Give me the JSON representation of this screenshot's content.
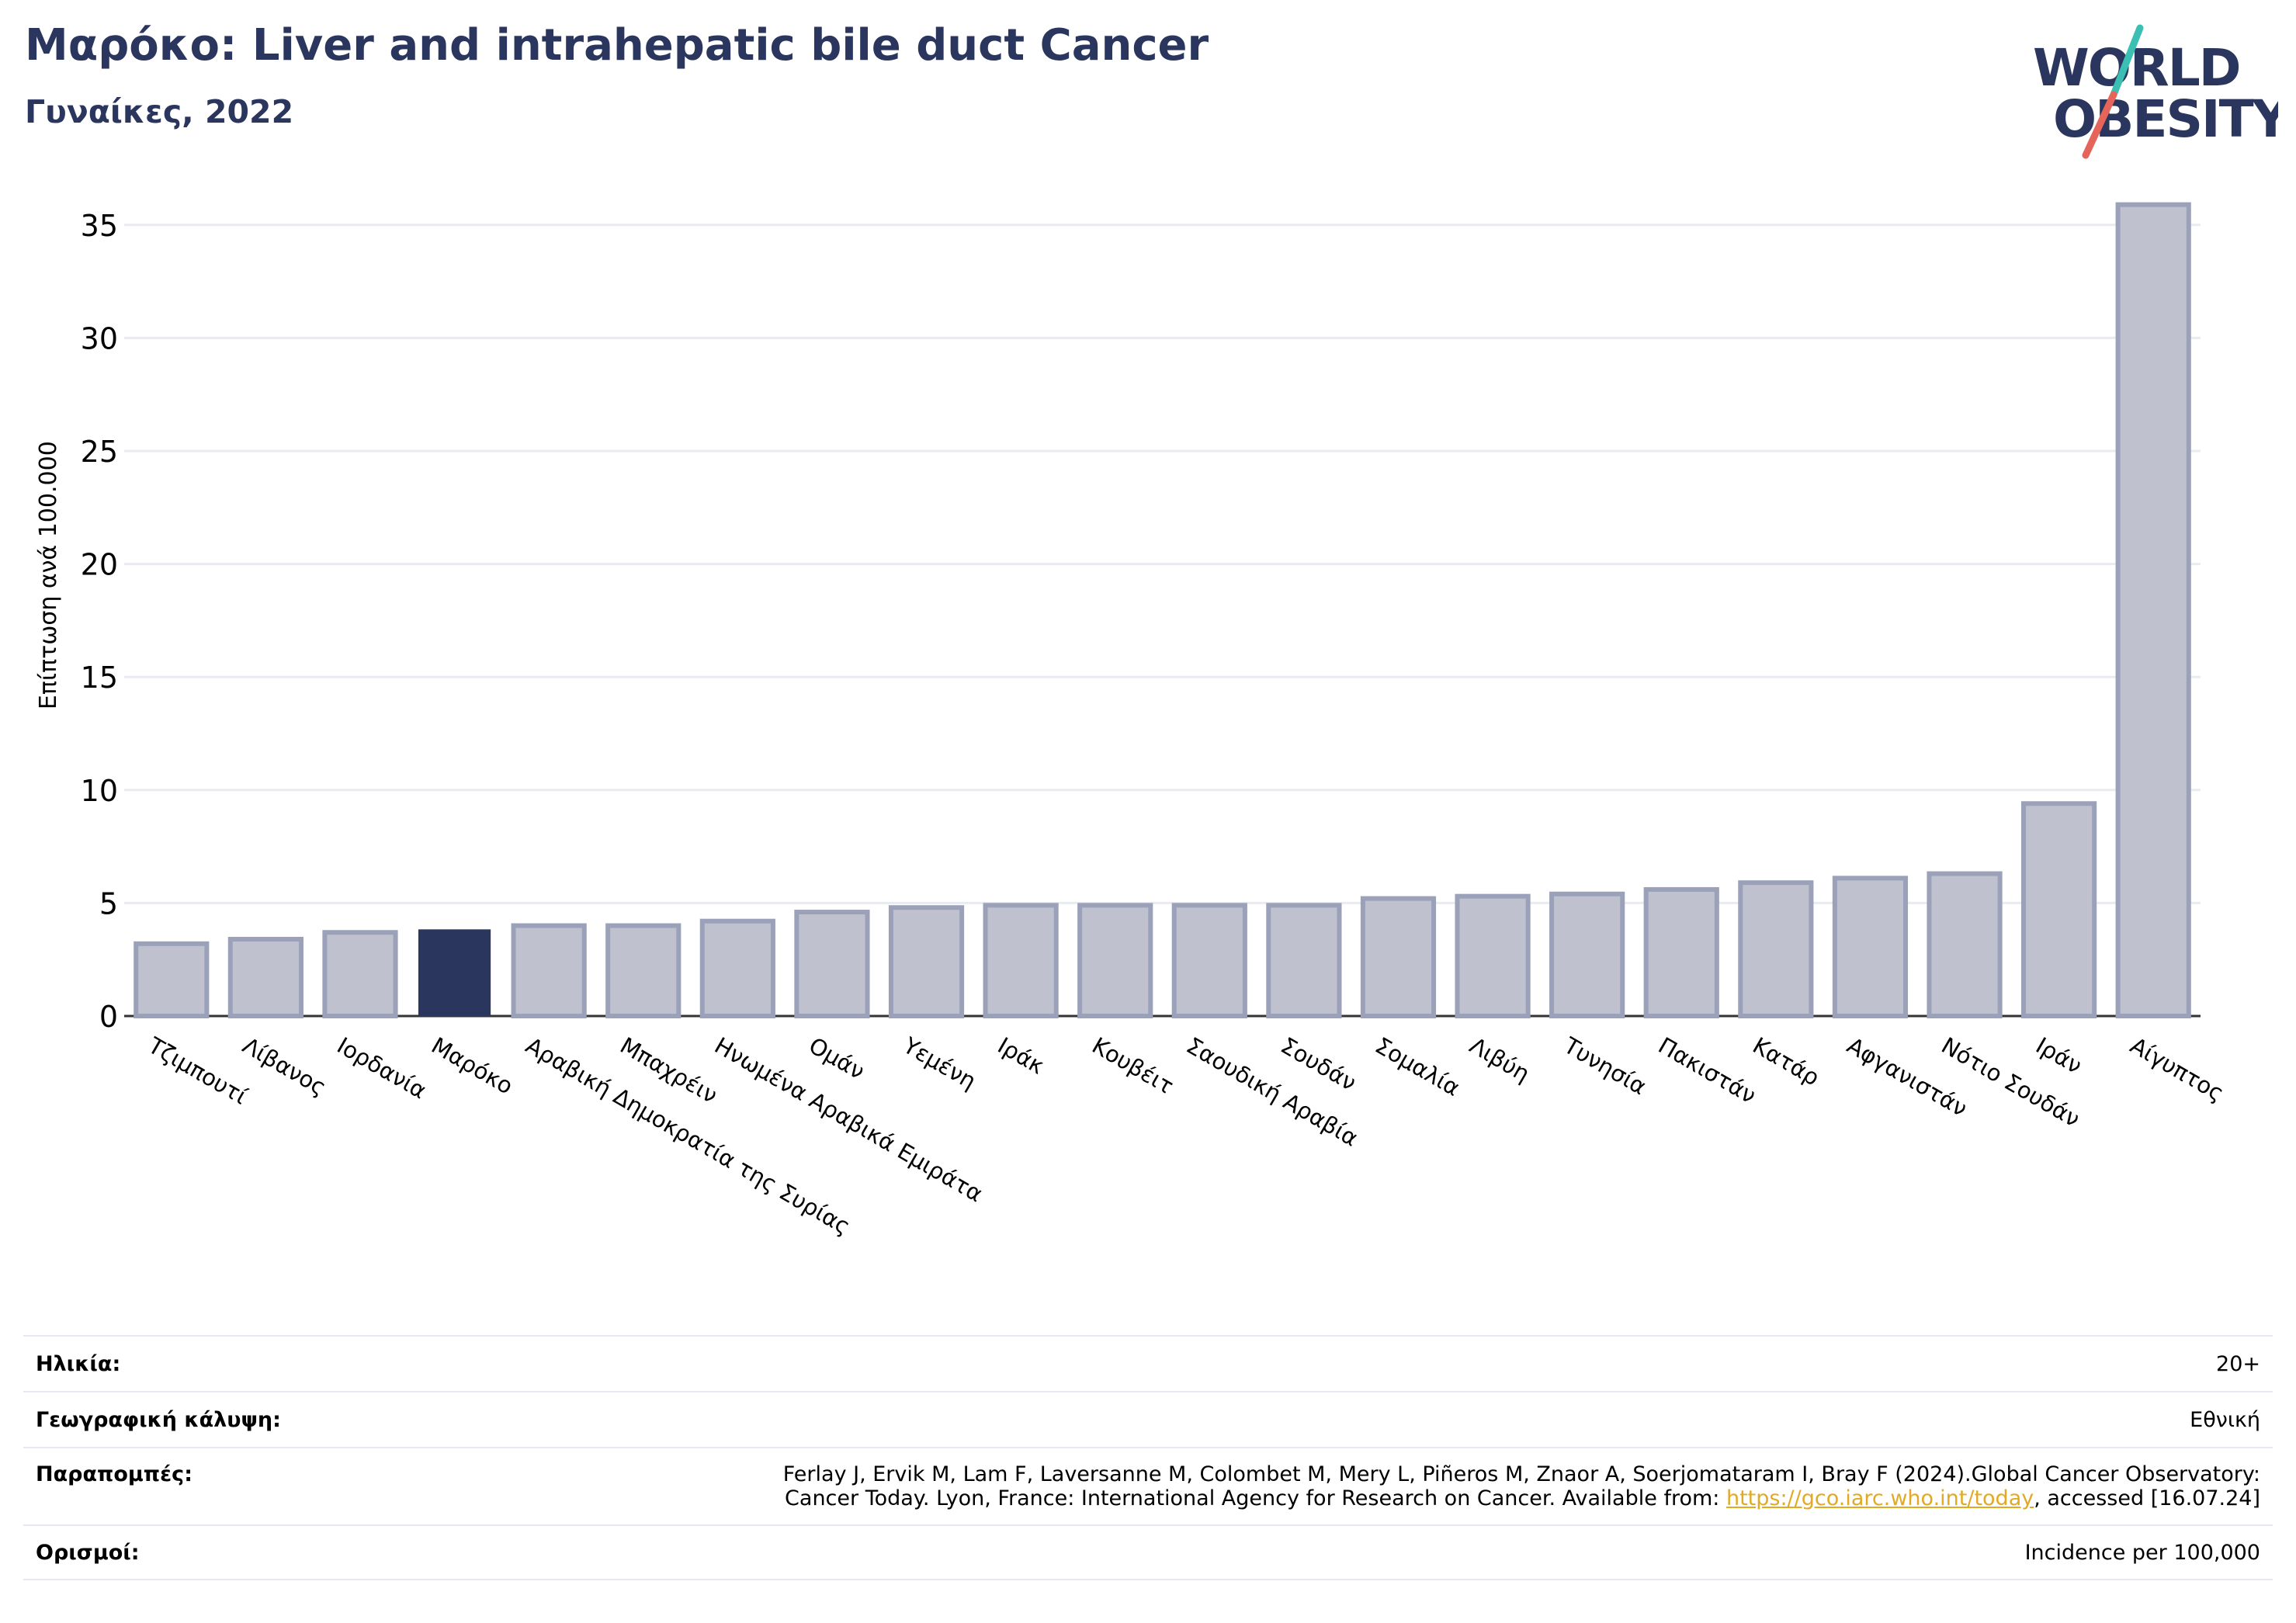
{
  "title": "Μαρόκο: Liver and intrahepatic bile duct Cancer",
  "subtitle": "Γυναίκες, 2022",
  "logo": {
    "line1": "WORLD",
    "line2": "OBESITY"
  },
  "colors": {
    "highlight": "#2b365e",
    "bar": "#bfc2ce",
    "bar_edge": "#9aa1b8",
    "title": "#2b365e",
    "link": "#e2a925"
  },
  "chart_data": {
    "type": "bar",
    "ylabel": "Επίπτωση ανά 100.000",
    "ylim": [
      0,
      37
    ],
    "yticks": [
      0,
      5,
      10,
      15,
      20,
      25,
      30,
      35
    ],
    "grid": true,
    "highlight": "Μαρόκο",
    "categories": [
      "Τζιμπουτί",
      "Λίβανος",
      "Ιορδανία",
      "Μαρόκο",
      "Αραβική Δημοκρατία της Συρίας",
      "Μπαχρέιν",
      "Ηνωμένα Αραβικά Εμιράτα",
      "Ομάν",
      "Υεμένη",
      "Ιράκ",
      "Κουβέιτ",
      "Σαουδική Αραβία",
      "Σουδάν",
      "Σομαλία",
      "Λιβύη",
      "Τυνησία",
      "Πακιστάν",
      "Κατάρ",
      "Αφγανιστάν",
      "Νότιο Σουδάν",
      "Ιράν",
      "Αίγυπτος"
    ],
    "values": [
      3.2,
      3.4,
      3.7,
      3.8,
      4.0,
      4.0,
      4.2,
      4.6,
      4.8,
      4.9,
      4.9,
      4.9,
      4.9,
      5.2,
      5.3,
      5.4,
      5.6,
      5.9,
      6.1,
      6.3,
      9.4,
      35.9
    ]
  },
  "meta": {
    "age_label": "Ηλικία:",
    "age_value": "20+",
    "coverage_label": "Γεωγραφική κάλυψη:",
    "coverage_value": "Εθνική",
    "refs_label": "Παραπομπές:",
    "refs_line1": "Ferlay J, Ervik M, Lam F, Laversanne M, Colombet M, Mery L, Piñeros M, Znaor A, Soerjomataram I, Bray F (2024).Global Cancer Observatory:",
    "refs_line2_pre": "Cancer Today. Lyon, France: International Agency for Research on Cancer. Available from: ",
    "refs_link": "https://gco.iarc.who.int/today",
    "refs_line2_post": ", accessed [16.07.24]",
    "def_label": "Ορισμοί:",
    "def_value": "Incidence per 100,000"
  }
}
